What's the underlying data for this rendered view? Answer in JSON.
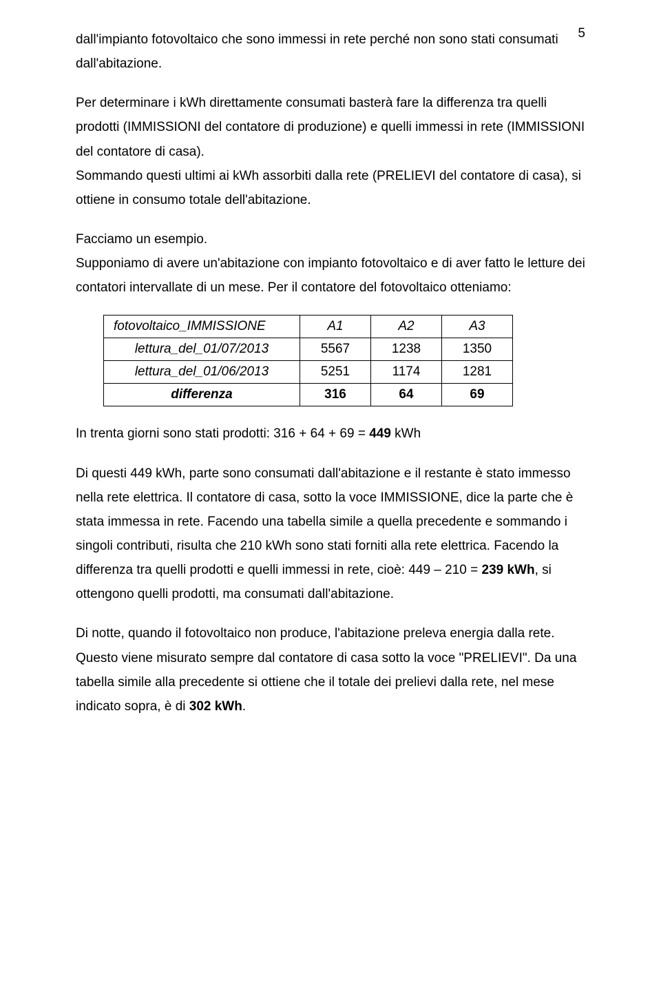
{
  "page_number": "5",
  "para1": "dall'impianto fotovoltaico che sono immessi in rete perché non sono stati consumati dall'abitazione.",
  "para2": "Per determinare i kWh direttamente consumati basterà fare la differenza tra quelli prodotti (IMMISSIONI del contatore di produzione) e quelli immessi in rete (IMMISSIONI del contatore di casa).",
  "para3": "Sommando questi ultimi ai kWh assorbiti dalla rete (PRELIEVI del contatore di casa), si ottiene in consumo totale dell'abitazione.",
  "para4": "Facciamo un esempio.",
  "para5": "Supponiamo di avere un'abitazione con impianto fotovoltaico e di aver fatto le letture dei contatori intervallate di un mese. Per il contatore del fotovoltaico otteniamo:",
  "table": {
    "header_label": "fotovoltaico_IMMISSIONE",
    "columns": [
      "A1",
      "A2",
      "A3"
    ],
    "rows": [
      {
        "label": "lettura_del_01/07/2013",
        "cells": [
          "5567",
          "1238",
          "1350"
        ]
      },
      {
        "label": "lettura_del_01/06/2013",
        "cells": [
          "5251",
          "1174",
          "1281"
        ]
      }
    ],
    "diff_label": "differenza",
    "diff_cells": [
      "316",
      "64",
      "69"
    ]
  },
  "para6_prefix": "In trenta giorni sono stati prodotti: 316 + 64 + 69 = ",
  "para6_bold": "449",
  "para6_suffix": " kWh",
  "para7_prefix": "Di questi 449 kWh, parte sono consumati dall'abitazione e il restante è stato immesso nella rete elettrica. Il contatore di casa, sotto la voce IMMISSIONE, dice la parte che è stata immessa in rete. Facendo una tabella simile a quella precedente e sommando i singoli contributi, risulta che 210 kWh sono stati forniti alla rete elettrica. Facendo la differenza tra quelli prodotti e quelli immessi in rete, cioè: 449 – 210 = ",
  "para7_bold": "239 kWh",
  "para7_suffix": ", si ottengono quelli prodotti, ma consumati dall'abitazione.",
  "para8": "Di notte, quando il fotovoltaico non produce, l'abitazione preleva energia dalla rete. Questo viene misurato sempre dal contatore di casa sotto la voce \"PRELIEVI\". Da una tabella simile alla precedente si ottiene che il totale dei prelievi dalla rete, nel mese indicato sopra, è di ",
  "para8_bold": "302 kWh",
  "para8_suffix": "."
}
